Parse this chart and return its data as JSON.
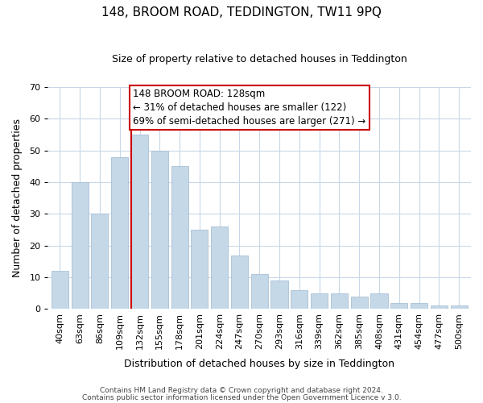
{
  "title": "148, BROOM ROAD, TEDDINGTON, TW11 9PQ",
  "subtitle": "Size of property relative to detached houses in Teddington",
  "xlabel": "Distribution of detached houses by size in Teddington",
  "ylabel": "Number of detached properties",
  "footer_line1": "Contains HM Land Registry data © Crown copyright and database right 2024.",
  "footer_line2": "Contains public sector information licensed under the Open Government Licence v 3.0.",
  "bar_labels": [
    "40sqm",
    "63sqm",
    "86sqm",
    "109sqm",
    "132sqm",
    "155sqm",
    "178sqm",
    "201sqm",
    "224sqm",
    "247sqm",
    "270sqm",
    "293sqm",
    "316sqm",
    "339sqm",
    "362sqm",
    "385sqm",
    "408sqm",
    "431sqm",
    "454sqm",
    "477sqm",
    "500sqm"
  ],
  "bar_values": [
    12,
    40,
    30,
    48,
    55,
    50,
    45,
    25,
    26,
    17,
    11,
    9,
    6,
    5,
    5,
    4,
    5,
    2,
    2,
    1,
    1
  ],
  "highlight_index": 4,
  "bar_color": "#c5d8e8",
  "bar_edge_color": "#a8c0d4",
  "highlight_line_color": "#cc0000",
  "annotation_line1": "148 BROOM ROAD: 128sqm",
  "annotation_line2": "← 31% of detached houses are smaller (122)",
  "annotation_line3": "69% of semi-detached houses are larger (271) →",
  "annotation_box_edgecolor": "#cc0000",
  "annotation_box_facecolor": "#ffffff",
  "ylim": [
    0,
    70
  ],
  "yticks": [
    0,
    10,
    20,
    30,
    40,
    50,
    60,
    70
  ],
  "background_color": "#ffffff",
  "grid_color": "#c8d8e8",
  "title_fontsize": 11,
  "subtitle_fontsize": 9,
  "ylabel_fontsize": 9,
  "xlabel_fontsize": 9,
  "tick_fontsize": 8,
  "footer_fontsize": 6.5,
  "annotation_fontsize": 8.5
}
